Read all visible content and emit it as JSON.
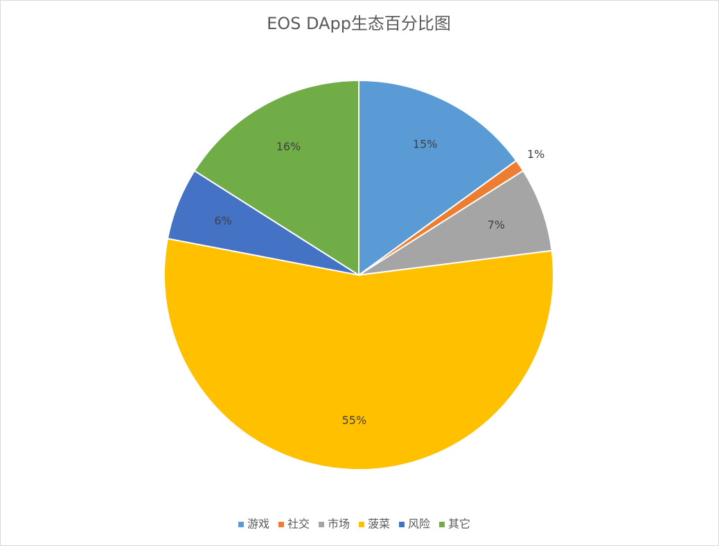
{
  "chart_data": {
    "type": "pie",
    "title": "EOS DApp生态百分比图",
    "categories": [
      "游戏",
      "社交",
      "市场",
      "菠菜",
      "风险",
      "其它"
    ],
    "values": [
      15,
      1,
      7,
      55,
      6,
      16
    ],
    "value_labels": [
      "15%",
      "1%",
      "7%",
      "55%",
      "6%",
      "16%"
    ],
    "colors": [
      "#5b9bd5",
      "#ed7d31",
      "#a5a5a5",
      "#ffc000",
      "#4472c4",
      "#70ad47"
    ],
    "legend": "bottom"
  }
}
